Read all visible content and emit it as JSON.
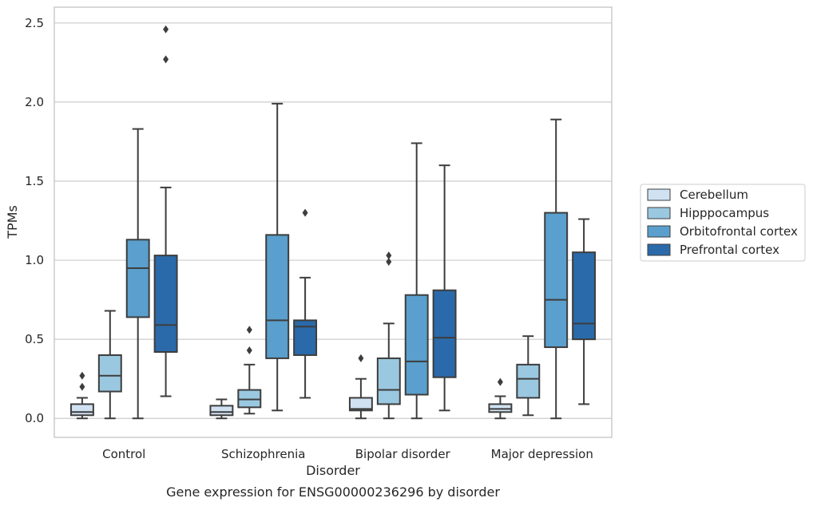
{
  "chart_data": {
    "type": "boxplot",
    "title": "",
    "caption": "Gene expression for ENSG00000236296 by disorder",
    "xlabel": "Disorder",
    "ylabel": "TPMs",
    "ylim": [
      -0.12,
      2.6
    ],
    "yticks": [
      0.0,
      0.5,
      1.0,
      1.5,
      2.0,
      2.5
    ],
    "ytick_labels": [
      "0.0",
      "0.5",
      "1.0",
      "1.5",
      "2.0",
      "2.5"
    ],
    "grid": "horizontal",
    "legend_position": "right",
    "categories": [
      "Control",
      "Schizophrenia",
      "Bipolar disorder",
      "Major depression"
    ],
    "series": [
      {
        "name": "Cerebellum",
        "color": "#d0e2f2",
        "boxes": [
          {
            "min": 0.0,
            "q1": 0.02,
            "median": 0.04,
            "q3": 0.09,
            "max": 0.13,
            "outliers": [
              0.2,
              0.27
            ]
          },
          {
            "min": 0.0,
            "q1": 0.02,
            "median": 0.04,
            "q3": 0.08,
            "max": 0.12,
            "outliers": []
          },
          {
            "min": 0.0,
            "q1": 0.05,
            "median": 0.06,
            "q3": 0.13,
            "max": 0.25,
            "outliers": [
              0.38
            ]
          },
          {
            "min": 0.0,
            "q1": 0.04,
            "median": 0.06,
            "q3": 0.09,
            "max": 0.14,
            "outliers": [
              0.23
            ]
          }
        ]
      },
      {
        "name": "Hipppocampus",
        "color": "#9ac8e0",
        "boxes": [
          {
            "min": 0.0,
            "q1": 0.17,
            "median": 0.27,
            "q3": 0.4,
            "max": 0.68,
            "outliers": []
          },
          {
            "min": 0.03,
            "q1": 0.07,
            "median": 0.12,
            "q3": 0.18,
            "max": 0.34,
            "outliers": [
              0.43,
              0.56
            ]
          },
          {
            "min": 0.0,
            "q1": 0.09,
            "median": 0.18,
            "q3": 0.38,
            "max": 0.6,
            "outliers": [
              0.99,
              1.03
            ]
          },
          {
            "min": 0.02,
            "q1": 0.13,
            "median": 0.25,
            "q3": 0.34,
            "max": 0.52,
            "outliers": []
          }
        ]
      },
      {
        "name": "Orbitofrontal cortex",
        "color": "#5a9fcd",
        "boxes": [
          {
            "min": 0.0,
            "q1": 0.64,
            "median": 0.95,
            "q3": 1.13,
            "max": 1.83,
            "outliers": []
          },
          {
            "min": 0.05,
            "q1": 0.38,
            "median": 0.62,
            "q3": 1.16,
            "max": 1.99,
            "outliers": []
          },
          {
            "min": 0.0,
            "q1": 0.15,
            "median": 0.36,
            "q3": 0.78,
            "max": 1.74,
            "outliers": []
          },
          {
            "min": 0.0,
            "q1": 0.45,
            "median": 0.75,
            "q3": 1.3,
            "max": 1.89,
            "outliers": []
          }
        ]
      },
      {
        "name": "Prefrontal cortex",
        "color": "#2a6aaa",
        "boxes": [
          {
            "min": 0.14,
            "q1": 0.42,
            "median": 0.59,
            "q3": 1.03,
            "max": 1.46,
            "outliers": [
              2.27,
              2.46
            ]
          },
          {
            "min": 0.13,
            "q1": 0.4,
            "median": 0.58,
            "q3": 0.62,
            "max": 0.89,
            "outliers": [
              1.3
            ]
          },
          {
            "min": 0.05,
            "q1": 0.26,
            "median": 0.51,
            "q3": 0.81,
            "max": 1.6,
            "outliers": []
          },
          {
            "min": 0.09,
            "q1": 0.5,
            "median": 0.6,
            "q3": 1.05,
            "max": 1.26,
            "outliers": []
          }
        ]
      }
    ]
  }
}
